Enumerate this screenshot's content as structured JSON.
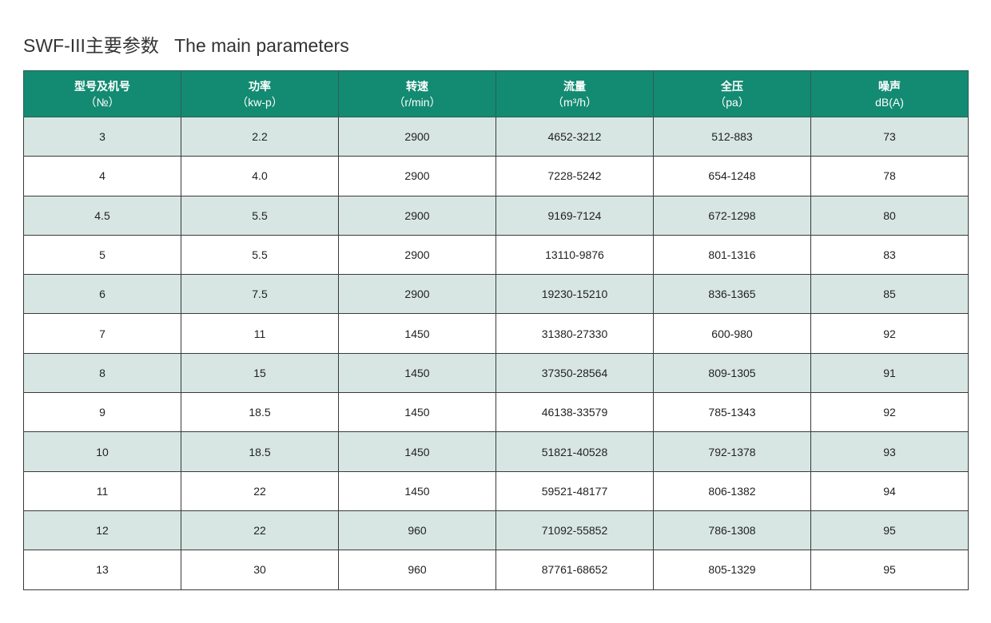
{
  "title": "SWF-III主要参数   The main parameters",
  "table": {
    "header": [
      {
        "name": "型号及机号",
        "unit": "（№）"
      },
      {
        "name": "功率",
        "unit": "（kw-p）"
      },
      {
        "name": "转速",
        "unit": "（r/min）"
      },
      {
        "name": "流量",
        "unit": "（m³/h）"
      },
      {
        "name": "全压",
        "unit": "（pa）"
      },
      {
        "name": "噪声",
        "unit": "dB(A)"
      }
    ],
    "rows": [
      [
        "3",
        "2.2",
        "2900",
        "4652-3212",
        "512-883",
        "73"
      ],
      [
        "4",
        "4.0",
        "2900",
        "7228-5242",
        "654-1248",
        "78"
      ],
      [
        "4.5",
        "5.5",
        "2900",
        "9169-7124",
        "672-1298",
        "80"
      ],
      [
        "5",
        "5.5",
        "2900",
        "13110-9876",
        "801-1316",
        "83"
      ],
      [
        "6",
        "7.5",
        "2900",
        "19230-15210",
        "836-1365",
        "85"
      ],
      [
        "7",
        "11",
        "1450",
        "31380-27330",
        "600-980",
        "92"
      ],
      [
        "8",
        "15",
        "1450",
        "37350-28564",
        "809-1305",
        "91"
      ],
      [
        "9",
        "18.5",
        "1450",
        "46138-33579",
        "785-1343",
        "92"
      ],
      [
        "10",
        "18.5",
        "1450",
        "51821-40528",
        "792-1378",
        "93"
      ],
      [
        "11",
        "22",
        "1450",
        "59521-48177",
        "806-1382",
        "94"
      ],
      [
        "12",
        "22",
        "960",
        "71092-55852",
        "786-1308",
        "95"
      ],
      [
        "13",
        "30",
        "960",
        "87761-68652",
        "805-1329",
        "95"
      ]
    ]
  }
}
